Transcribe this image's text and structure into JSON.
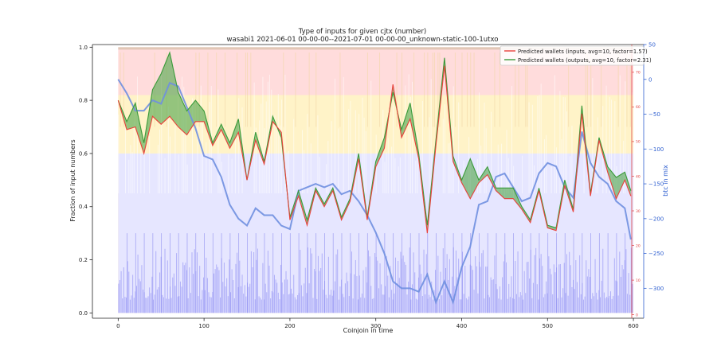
{
  "chart_data": {
    "type": "area",
    "title": "Type of inputs for given cjtx (number)",
    "subtitle": "wasabi1 2021-06-01 00-00-00--2021-07-01 00-00-00_unknown-static-100-1utxo",
    "xlabel": "Coinjoin in time",
    "ylabel": "Fraction of input numbers",
    "y2label": "",
    "y3label": "btc in mix",
    "xlim": [
      -30,
      612
    ],
    "ylim": [
      -0.02,
      1.01
    ],
    "y2lim": [
      -1,
      78
    ],
    "y3lim": [
      -343,
      50
    ],
    "xticks": [
      0,
      100,
      200,
      300,
      400,
      500,
      600
    ],
    "yticks": [
      0.0,
      0.2,
      0.4,
      0.6,
      0.8,
      1.0
    ],
    "ytick_labels": [
      "0.0",
      "0.2",
      "0.4",
      "0.6",
      "0.8",
      "1.0"
    ],
    "y2ticks": [
      0,
      10,
      20,
      30,
      40,
      50,
      60,
      70
    ],
    "y3ticks": [
      50,
      0,
      -50,
      -100,
      -150,
      -200,
      -250,
      -300
    ],
    "legend_position": "top-right",
    "grid": false,
    "colors": {
      "inputs": "#e8413a",
      "outputs": "#3a9a3a",
      "btc": "#6f8fe0",
      "fill_green": "#5aaa55",
      "fill_red": "#f07070",
      "bg_purple": "#d8d8ff",
      "bar_purple": "#9c9cf5",
      "band_yellow": "#fff3c8",
      "band_pink": "#ffdcdc",
      "top_tan": "#d9c2ad",
      "right_axis_red": "#e04040",
      "right_axis_blue": "#3060d0"
    },
    "series": [
      {
        "name": "Predicted wallets (inputs, avg=10, factor=1.57)",
        "x": [
          0,
          10,
          20,
          30,
          40,
          50,
          60,
          70,
          80,
          90,
          100,
          110,
          120,
          130,
          140,
          150,
          160,
          170,
          180,
          190,
          200,
          210,
          220,
          230,
          240,
          250,
          260,
          270,
          280,
          290,
          300,
          310,
          320,
          330,
          340,
          350,
          360,
          370,
          380,
          390,
          400,
          410,
          420,
          430,
          440,
          450,
          460,
          470,
          480,
          490,
          500,
          510,
          520,
          530,
          540,
          550,
          560,
          570,
          580,
          590,
          597
        ],
        "values": [
          0.8,
          0.69,
          0.7,
          0.6,
          0.74,
          0.71,
          0.74,
          0.7,
          0.67,
          0.72,
          0.72,
          0.63,
          0.69,
          0.62,
          0.68,
          0.5,
          0.65,
          0.56,
          0.72,
          0.68,
          0.35,
          0.44,
          0.33,
          0.46,
          0.4,
          0.46,
          0.35,
          0.42,
          0.58,
          0.35,
          0.55,
          0.62,
          0.86,
          0.66,
          0.73,
          0.58,
          0.3,
          0.63,
          0.93,
          0.57,
          0.49,
          0.43,
          0.49,
          0.52,
          0.46,
          0.43,
          0.43,
          0.39,
          0.34,
          0.46,
          0.32,
          0.31,
          0.48,
          0.38,
          0.75,
          0.44,
          0.65,
          0.53,
          0.43,
          0.5,
          0.44
        ]
      },
      {
        "name": "Predicted wallets (outputs, avg=10, factor=2.31)",
        "x": [
          0,
          10,
          20,
          30,
          40,
          50,
          60,
          70,
          80,
          90,
          100,
          110,
          120,
          130,
          140,
          150,
          160,
          170,
          180,
          190,
          200,
          210,
          220,
          230,
          240,
          250,
          260,
          270,
          280,
          290,
          300,
          310,
          320,
          330,
          340,
          350,
          360,
          370,
          380,
          390,
          400,
          410,
          420,
          430,
          440,
          450,
          460,
          470,
          480,
          490,
          500,
          510,
          520,
          530,
          540,
          550,
          560,
          570,
          580,
          590,
          597
        ],
        "values": [
          0.8,
          0.72,
          0.79,
          0.64,
          0.84,
          0.9,
          0.98,
          0.83,
          0.76,
          0.8,
          0.76,
          0.64,
          0.71,
          0.64,
          0.73,
          0.5,
          0.68,
          0.57,
          0.74,
          0.66,
          0.36,
          0.46,
          0.35,
          0.47,
          0.41,
          0.47,
          0.36,
          0.43,
          0.6,
          0.36,
          0.57,
          0.66,
          0.83,
          0.69,
          0.79,
          0.6,
          0.33,
          0.65,
          0.96,
          0.59,
          0.5,
          0.58,
          0.5,
          0.55,
          0.47,
          0.47,
          0.47,
          0.4,
          0.35,
          0.47,
          0.33,
          0.32,
          0.5,
          0.39,
          0.78,
          0.45,
          0.66,
          0.55,
          0.51,
          0.53,
          0.46
        ]
      },
      {
        "name": "",
        "axis": "btc",
        "x": [
          0,
          10,
          20,
          30,
          40,
          50,
          60,
          70,
          80,
          90,
          100,
          110,
          120,
          130,
          140,
          150,
          160,
          170,
          180,
          190,
          200,
          210,
          220,
          230,
          240,
          250,
          260,
          270,
          280,
          290,
          300,
          310,
          320,
          330,
          340,
          350,
          360,
          370,
          380,
          390,
          400,
          410,
          420,
          430,
          440,
          450,
          460,
          470,
          480,
          490,
          500,
          510,
          520,
          530,
          540,
          550,
          560,
          570,
          580,
          590,
          597
        ],
        "values": [
          0,
          -20,
          -45,
          -45,
          -30,
          -35,
          -5,
          -10,
          -40,
          -70,
          -110,
          -115,
          -140,
          -180,
          -200,
          -210,
          -185,
          -195,
          -195,
          -210,
          -215,
          -160,
          -155,
          -150,
          -155,
          -150,
          -165,
          -160,
          -175,
          -195,
          -220,
          -250,
          -290,
          -300,
          -300,
          -305,
          -280,
          -320,
          -290,
          -320,
          -270,
          -240,
          -180,
          -175,
          -140,
          -135,
          -155,
          -175,
          -170,
          -135,
          -120,
          -125,
          -155,
          -170,
          -75,
          -120,
          -140,
          -150,
          -175,
          -185,
          -230
        ]
      }
    ]
  }
}
